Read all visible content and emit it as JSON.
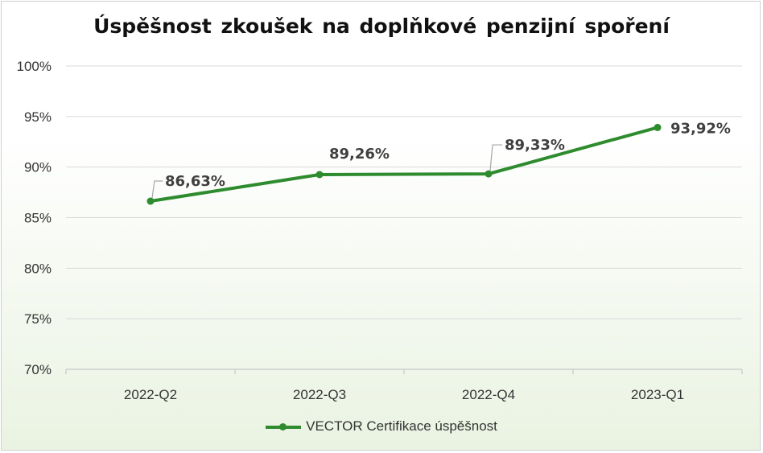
{
  "chart_data": {
    "type": "line",
    "title": "Úspěšnost zkoušek na doplňkové penzijní spoření",
    "categories": [
      "2022-Q2",
      "2022-Q3",
      "2022-Q4",
      "2023-Q1"
    ],
    "series": [
      {
        "name": "VECTOR Certifikace úspěšnost",
        "values": [
          86.63,
          89.26,
          89.33,
          93.92
        ],
        "labels": [
          "86,63%",
          "89,26%",
          "89,33%",
          "93,92%"
        ],
        "color": "#2e8b2e"
      }
    ],
    "ylim": [
      70,
      100
    ],
    "yticks": [
      "70%",
      "75%",
      "80%",
      "85%",
      "90%",
      "95%",
      "100%"
    ],
    "ytick_values": [
      70,
      75,
      80,
      85,
      90,
      95,
      100
    ],
    "grid": true,
    "legend": "bottom",
    "xlabel": "",
    "ylabel": ""
  }
}
